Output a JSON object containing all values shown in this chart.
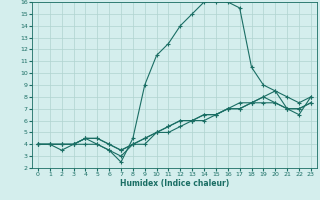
{
  "xlabel": "Humidex (Indice chaleur)",
  "bg_color": "#d4eeed",
  "grid_color": "#b0d4d0",
  "line_color": "#1a6e64",
  "xlim": [
    -0.5,
    23.5
  ],
  "ylim": [
    2,
    16
  ],
  "xticks": [
    0,
    1,
    2,
    3,
    4,
    5,
    6,
    7,
    8,
    9,
    10,
    11,
    12,
    13,
    14,
    15,
    16,
    17,
    18,
    19,
    20,
    21,
    22,
    23
  ],
  "yticks": [
    2,
    3,
    4,
    5,
    6,
    7,
    8,
    9,
    10,
    11,
    12,
    13,
    14,
    15,
    16
  ],
  "line1_x": [
    0,
    1,
    2,
    3,
    4,
    5,
    6,
    7,
    8,
    9,
    10,
    11,
    12,
    13,
    14,
    15,
    16,
    17,
    18,
    19,
    20,
    21,
    22,
    23
  ],
  "line1_y": [
    4,
    4,
    4,
    4,
    4,
    4,
    3.5,
    2.5,
    4.5,
    9,
    11.5,
    12.5,
    14,
    15,
    16,
    16.0,
    16.0,
    15.5,
    10.5,
    9,
    8.5,
    7,
    6.5,
    8
  ],
  "line2_x": [
    0,
    1,
    2,
    3,
    4,
    5,
    6,
    7,
    8,
    9,
    10,
    11,
    12,
    13,
    14,
    15,
    16,
    17,
    18,
    19,
    20,
    21,
    22,
    23
  ],
  "line2_y": [
    4,
    4,
    3.5,
    4,
    4.5,
    4,
    3.5,
    3,
    4,
    4.5,
    5,
    5.5,
    6,
    6,
    6.5,
    6.5,
    7,
    7,
    7.5,
    8,
    8.5,
    8,
    7.5,
    8
  ],
  "line3_x": [
    0,
    1,
    2,
    3,
    4,
    5,
    6,
    7,
    8,
    9,
    10,
    11,
    12,
    13,
    14,
    15,
    16,
    17,
    18,
    19,
    20,
    21,
    22,
    23
  ],
  "line3_y": [
    4,
    4,
    4,
    4,
    4.5,
    4.5,
    4,
    3.5,
    4,
    4.5,
    5,
    5.5,
    6,
    6,
    6.5,
    6.5,
    7,
    7.5,
    7.5,
    7.5,
    7.5,
    7,
    7,
    7.5
  ],
  "line4_x": [
    0,
    1,
    2,
    3,
    4,
    5,
    6,
    7,
    8,
    9,
    10,
    11,
    12,
    13,
    14,
    15,
    16,
    17,
    18,
    19,
    20,
    21,
    22,
    23
  ],
  "line4_y": [
    4,
    4,
    4,
    4,
    4.5,
    4.5,
    4,
    3.5,
    4,
    4,
    5,
    5,
    5.5,
    6,
    6,
    6.5,
    7,
    7,
    7.5,
    8,
    7.5,
    7,
    7,
    7.5
  ]
}
